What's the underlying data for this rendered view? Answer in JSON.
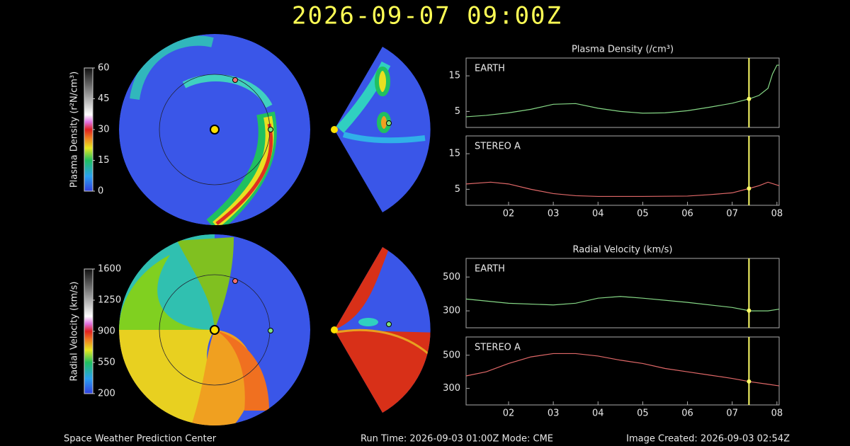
{
  "title": "2026-09-07 09:00Z",
  "footer": {
    "left": "Space Weather Prediction Center",
    "center": "Run Time: 2026-09-03 01:00Z  Mode: CME",
    "right": "Image Created: 2026-09-03 02:54Z"
  },
  "chart_data": [
    {
      "type": "colorbar",
      "title": "Plasma Density (r²N/cm³)",
      "ylim": [
        0,
        60
      ],
      "yticks": [
        0,
        15,
        30,
        45,
        60
      ]
    },
    {
      "type": "colorbar",
      "title": "Radial Velocity (km/s)",
      "ylim": [
        200,
        1600
      ],
      "yticks": [
        200,
        550,
        900,
        1250,
        1600
      ]
    },
    {
      "type": "line",
      "title": "Plasma Density (/cm³)",
      "label": "EARTH",
      "color": "#86d886",
      "x": [
        1.05,
        1.5,
        2,
        2.5,
        3,
        3.5,
        4,
        4.5,
        5,
        5.5,
        6,
        6.5,
        7,
        7.4,
        7.6,
        7.8,
        7.9,
        8.0,
        8.05
      ],
      "values": [
        3.5,
        3.9,
        4.6,
        5.6,
        7.0,
        7.2,
        5.9,
        5.0,
        4.5,
        4.6,
        5.2,
        6.2,
        7.3,
        8.6,
        9.5,
        11.5,
        15.5,
        18.0,
        18.0
      ],
      "xlim": [
        1.05,
        8.05
      ],
      "ylim": [
        0.5,
        20
      ],
      "yticks": [
        5,
        15
      ],
      "current_time": 7.375
    },
    {
      "type": "line",
      "label": "STEREO A",
      "color": "#e06868",
      "x": [
        1.05,
        1.6,
        2,
        2.5,
        3,
        3.5,
        4,
        5,
        6,
        6.5,
        7,
        7.4,
        7.6,
        7.8,
        8.05
      ],
      "values": [
        6.5,
        7.0,
        6.5,
        5.0,
        3.8,
        3.2,
        3.0,
        3.0,
        3.1,
        3.5,
        4.0,
        5.3,
        6.0,
        7.0,
        6.0
      ],
      "xlim": [
        1.05,
        8.05
      ],
      "ylim": [
        0.5,
        20
      ],
      "yticks": [
        5,
        15
      ],
      "current_time": 7.375,
      "xticks": [
        {
          "value": 2,
          "label": "02"
        },
        {
          "value": 3,
          "label": "03"
        },
        {
          "value": 4,
          "label": "04"
        },
        {
          "value": 5,
          "label": "05"
        },
        {
          "value": 6,
          "label": "06"
        },
        {
          "value": 7,
          "label": "07"
        },
        {
          "value": 8,
          "label": "08"
        }
      ]
    },
    {
      "type": "line",
      "title": "Radial Velocity (km/s)",
      "label": "EARTH",
      "color": "#86d886",
      "x": [
        1.05,
        2,
        3,
        3.5,
        4,
        4.5,
        5,
        6,
        7,
        7.4,
        7.8,
        8.05
      ],
      "values": [
        370,
        345,
        335,
        345,
        375,
        385,
        375,
        350,
        320,
        300,
        300,
        310
      ],
      "xlim": [
        1.05,
        8.05
      ],
      "ylim": [
        200,
        610
      ],
      "yticks": [
        300,
        500
      ],
      "current_time": 7.375
    },
    {
      "type": "line",
      "label": "STEREO A",
      "color": "#e06868",
      "x": [
        1.05,
        1.5,
        2,
        2.5,
        3,
        3.5,
        4,
        4.5,
        5,
        5.5,
        6,
        6.5,
        7,
        7.4,
        7.8,
        8.05
      ],
      "values": [
        375,
        400,
        450,
        490,
        510,
        510,
        495,
        470,
        450,
        420,
        400,
        380,
        360,
        340,
        325,
        315
      ],
      "xlim": [
        1.05,
        8.05
      ],
      "ylim": [
        200,
        610
      ],
      "yticks": [
        300,
        500
      ],
      "current_time": 7.375,
      "xticks": [
        {
          "value": 2,
          "label": "02"
        },
        {
          "value": 3,
          "label": "03"
        },
        {
          "value": 4,
          "label": "04"
        },
        {
          "value": 5,
          "label": "05"
        },
        {
          "value": 6,
          "label": "06"
        },
        {
          "value": 7,
          "label": "07"
        },
        {
          "value": 8,
          "label": "08"
        }
      ]
    }
  ]
}
